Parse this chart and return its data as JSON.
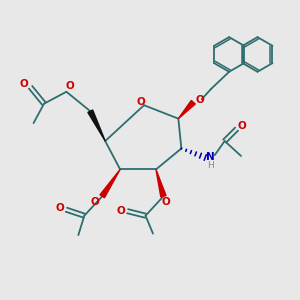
{
  "bg_color": "#e8e8e8",
  "bond_color": "#2d6e6e",
  "red_color": "#cc0000",
  "blue_color": "#0000bb",
  "gray_color": "#888888",
  "black_color": "#111111",
  "figsize": [
    3.0,
    3.0
  ],
  "dpi": 100,
  "lw": 1.3,
  "xlim": [
    0,
    10
  ],
  "ylim": [
    0,
    10
  ]
}
